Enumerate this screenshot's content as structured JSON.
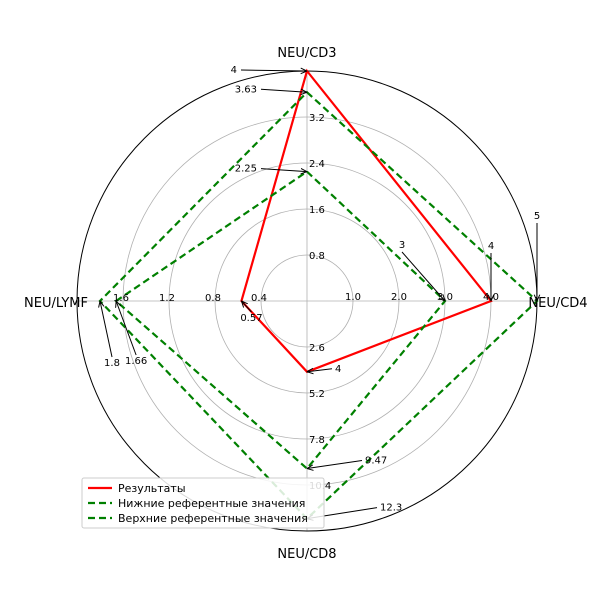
{
  "chart_data": {
    "type": "radar",
    "axes": [
      {
        "name": "NEU/CD3",
        "ticks": [
          "0.8",
          "1.6",
          "2.4",
          "3.2"
        ],
        "max": 4
      },
      {
        "name": "NEU/CD4",
        "ticks": [
          "1.0",
          "2.0",
          "3.0",
          "4.0"
        ],
        "max": 5
      },
      {
        "name": "NEU/CD8",
        "ticks": [
          "2.6",
          "5.2",
          "7.8",
          "10.4"
        ],
        "max": 13
      },
      {
        "name": "NEU/LYMF",
        "ticks": [
          "0.4",
          "0.8",
          "1.2",
          "1.6"
        ],
        "max": 2
      }
    ],
    "series": [
      {
        "name": "Результаты",
        "color": "#ff0000",
        "style": "solid",
        "values": [
          4,
          4,
          4,
          0.57
        ],
        "labels": [
          "4",
          "4",
          "4",
          "0.57"
        ]
      },
      {
        "name": "Нижние референтные значения",
        "color": "#008000",
        "style": "dashed",
        "values": [
          2.25,
          3,
          9.47,
          1.66
        ],
        "labels": [
          "2.25",
          "3",
          "9.47",
          "1.66"
        ]
      },
      {
        "name": "Верхние референтные значения",
        "color": "#008000",
        "style": "dashed",
        "values": [
          3.63,
          5,
          12.3,
          1.8
        ],
        "labels": [
          "3.63",
          "5",
          "12.3",
          "1.8"
        ]
      }
    ],
    "grid": true,
    "legend": "lower-left"
  }
}
